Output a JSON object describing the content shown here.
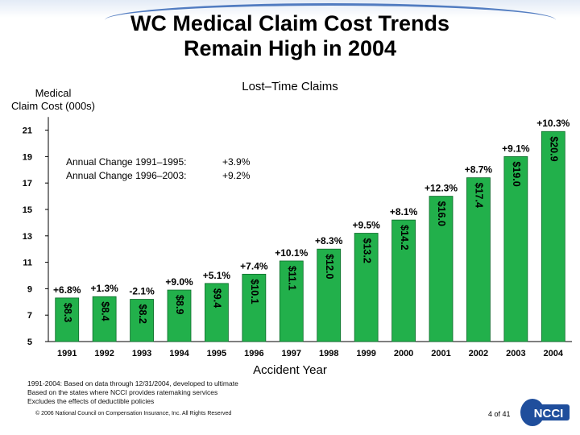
{
  "slide": {
    "title_line1": "WC Medical Claim Cost Trends",
    "title_line2": "Remain High in 2004",
    "page_number": "4 of 41",
    "logo_text": "NCCI",
    "footnotes": [
      "1991-2004: Based on data through 12/31/2004, developed to ultimate",
      "Based on the states where NCCI provides ratemaking services",
      "Excludes the effects of deductible policies"
    ],
    "copyright": "© 2006 National Council on Compensation Insurance, Inc. All Rights Reserved"
  },
  "annual_change": [
    {
      "label": "Annual Change 1991–1995:",
      "value": "+3.9%"
    },
    {
      "label": "Annual Change 1996–2003:",
      "value": "+9.2%"
    }
  ],
  "chart_data": {
    "type": "bar",
    "title": "Lost–Time Claims",
    "ylabel_line1": "Medical",
    "ylabel_line2": "Claim Cost (000s)",
    "xlabel": "Accident Year",
    "categories": [
      "1991",
      "1992",
      "1993",
      "1994",
      "1995",
      "1996",
      "1997",
      "1998",
      "1999",
      "2000",
      "2001",
      "2002",
      "2003",
      "2004"
    ],
    "values": [
      8.3,
      8.4,
      8.2,
      8.9,
      9.4,
      10.1,
      11.1,
      12.0,
      13.2,
      14.2,
      16.0,
      17.4,
      19.0,
      20.9
    ],
    "value_labels": [
      "$8.3",
      "$8.4",
      "$8.2",
      "$8.9",
      "$9.4",
      "$10.1",
      "$11.1",
      "$12.0",
      "$13.2",
      "$14.2",
      "$16.0",
      "$17.4",
      "$19.0",
      "$20.9"
    ],
    "change_labels": [
      "+6.8%",
      "+1.3%",
      "-2.1%",
      "+9.0%",
      "+5.1%",
      "+7.4%",
      "+10.1%",
      "+8.3%",
      "+9.5%",
      "+8.1%",
      "+12.3%",
      "+8.7%",
      "+9.1%",
      "+10.3%"
    ],
    "yticks": [
      5,
      7,
      9,
      11,
      13,
      15,
      17,
      19,
      21
    ],
    "ylim": [
      5,
      22
    ],
    "bar_color": "#22b04b",
    "grid": false
  }
}
